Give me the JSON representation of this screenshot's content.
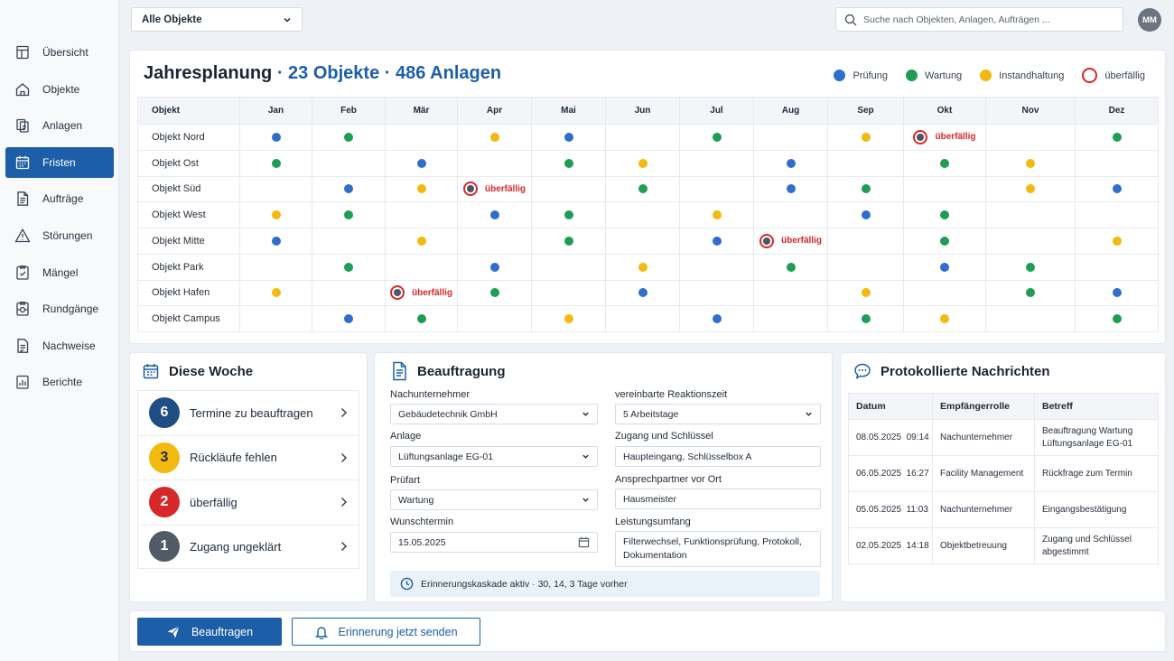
{
  "sidebar": {
    "items": [
      {
        "label": "Übersicht",
        "icon": "overview-icon",
        "active": false
      },
      {
        "label": "Objekte",
        "icon": "home-icon",
        "active": false
      },
      {
        "label": "Anlagen",
        "icon": "assets-icon",
        "active": false
      },
      {
        "label": "Fristen",
        "icon": "calendar-icon",
        "active": true
      },
      {
        "label": "Aufträge",
        "icon": "document-icon",
        "active": false
      },
      {
        "label": "Störungen",
        "icon": "warning-icon",
        "active": false
      },
      {
        "label": "Mängel",
        "icon": "defect-icon",
        "active": false
      },
      {
        "label": "Rundgänge",
        "icon": "inspection-round-icon",
        "active": false
      },
      {
        "label": "Nachweise",
        "icon": "certificate-icon",
        "active": false
      },
      {
        "label": "Berichte",
        "icon": "report-icon",
        "active": false
      }
    ]
  },
  "topbar": {
    "object_filter": "Alle Objekte",
    "search_placeholder": "Suche nach Objekten, Anlagen, Aufträgen ...",
    "avatar_initials": "MM"
  },
  "colors": {
    "pruefung": "#2f6fc9",
    "wartung": "#1f9d55",
    "instandhaltung": "#f2b90f",
    "overdue": "#d62828",
    "primary": "#1d5ea8"
  },
  "planning": {
    "title": "Jahresplanung",
    "subtitle": "· 23 Objekte · 486 Anlagen",
    "legend": {
      "pruefung": "Prüfung",
      "wartung": "Wartung",
      "instandhaltung": "Instandhaltung",
      "overdue": "überfällig"
    },
    "object_header": "Objekt",
    "months": [
      "Jan",
      "Feb",
      "Mär",
      "Apr",
      "Mai",
      "Jun",
      "Jul",
      "Aug",
      "Sep",
      "Okt",
      "Nov",
      "Dez"
    ],
    "overdue_label": "überfällig",
    "rows": [
      {
        "name": "Objekt Nord",
        "cells": [
          "P",
          "W",
          "",
          "I",
          "P",
          "",
          "W",
          "",
          "I",
          "O",
          "",
          "W"
        ]
      },
      {
        "name": "Objekt Ost",
        "cells": [
          "W",
          "",
          "P",
          "",
          "W",
          "I",
          "",
          "P",
          "",
          "W",
          "I",
          ""
        ]
      },
      {
        "name": "Objekt Süd",
        "cells": [
          "",
          "P",
          "I",
          "O",
          "",
          "W",
          "",
          "P",
          "W",
          "",
          "I",
          "P"
        ]
      },
      {
        "name": "Objekt West",
        "cells": [
          "I",
          "W",
          "",
          "P",
          "W",
          "",
          "I",
          "",
          "P",
          "W",
          "",
          ""
        ]
      },
      {
        "name": "Objekt Mitte",
        "cells": [
          "P",
          "",
          "I",
          "",
          "W",
          "",
          "P",
          "O",
          "",
          "W",
          "",
          "I"
        ]
      },
      {
        "name": "Objekt Park",
        "cells": [
          "",
          "W",
          "",
          "P",
          "",
          "I",
          "",
          "W",
          "",
          "P",
          "W",
          ""
        ]
      },
      {
        "name": "Objekt Hafen",
        "cells": [
          "I",
          "",
          "O",
          "W",
          "",
          "P",
          "",
          "",
          "I",
          "",
          "W",
          "P"
        ]
      },
      {
        "name": "Objekt Campus",
        "cells": [
          "",
          "P",
          "W",
          "",
          "I",
          "",
          "P",
          "",
          "W",
          "I",
          "",
          "W"
        ]
      }
    ]
  },
  "week": {
    "title": "Diese Woche",
    "items": [
      {
        "count": "6",
        "label": "Termine zu beauftragen",
        "bg": "#1f4e85",
        "fg": "#ffffff"
      },
      {
        "count": "3",
        "label": "Rückläufe fehlen",
        "bg": "#f2b90f",
        "fg": "#1f2937"
      },
      {
        "count": "2",
        "label": "überfällig",
        "bg": "#d62828",
        "fg": "#ffffff"
      },
      {
        "count": "1",
        "label": "Zugang ungeklärt",
        "bg": "#515b67",
        "fg": "#ffffff"
      }
    ]
  },
  "beauftragung": {
    "title": "Beauftragung",
    "nachunternehmer": {
      "label": "Nachunternehmer",
      "value": "Gebäudetechnik GmbH"
    },
    "anlage": {
      "label": "Anlage",
      "value": "Lüftungsanlage EG-01"
    },
    "pruefart": {
      "label": "Prüfart",
      "value": "Wartung"
    },
    "wunschtermin": {
      "label": "Wunschtermin",
      "value": "15.05.2025"
    },
    "reaktionszeit": {
      "label": "vereinbarte Reaktionszeit",
      "value": "5 Arbeitstage"
    },
    "zugang": {
      "label": "Zugang und Schlüssel",
      "value": "Haupteingang, Schlüsselbox A"
    },
    "ansprechpartner": {
      "label": "Ansprechpartner vor Ort",
      "value": "Hausmeister"
    },
    "leistungsumfang": {
      "label": "Leistungsumfang",
      "value": "Filterwechsel, Funktionsprüfung, Protokoll, Dokumentation"
    },
    "reminder": "Erinnerungskaskade aktiv · 30, 14, 3 Tage vorher"
  },
  "messages": {
    "title": "Protokollierte Nachrichten",
    "headers": {
      "date": "Datum",
      "role": "Empfängerrolle",
      "subject": "Betreff"
    },
    "rows": [
      {
        "date": "08.05.2025  09:14",
        "role": "Nachunternehmer",
        "subject": "Beauftragung Wartung Lüftungsanlage EG-01"
      },
      {
        "date": "06.05.2025  16:27",
        "role": "Facility Management",
        "subject": "Rückfrage zum Termin"
      },
      {
        "date": "05.05.2025  11:03",
        "role": "Nachunternehmer",
        "subject": "Eingangsbestätigung"
      },
      {
        "date": "02.05.2025  14:18",
        "role": "Objektbetreuung",
        "subject": "Zugang und Schlüssel abgestimmt"
      }
    ]
  },
  "actions": {
    "primary": "Beauftragen",
    "secondary": "Erinnerung jetzt senden"
  }
}
